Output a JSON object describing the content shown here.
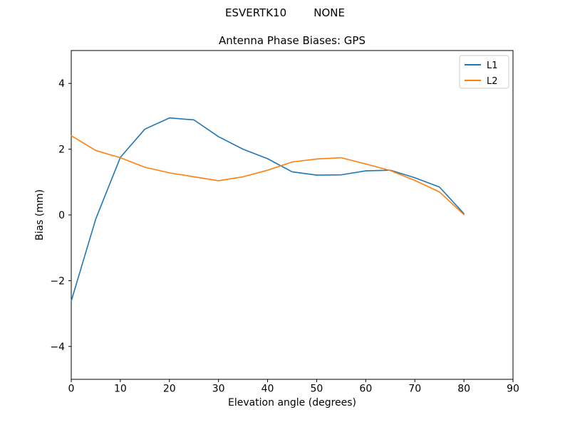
{
  "chart_data": {
    "type": "line",
    "suptitle": "ESVERTK10        NONE",
    "title": "Antenna Phase Biases: GPS",
    "xlabel": "Elevation angle (degrees)",
    "ylabel": "Bias (mm)",
    "xlim": [
      0,
      90
    ],
    "ylim": [
      -5,
      5
    ],
    "xticks": [
      0,
      10,
      20,
      30,
      40,
      50,
      60,
      70,
      80,
      90
    ],
    "yticks": [
      -4,
      -2,
      0,
      2,
      4
    ],
    "grid": false,
    "legend_position": "upper right",
    "legend_entries": [
      "L1",
      "L2"
    ],
    "x": [
      0,
      5,
      10,
      15,
      20,
      25,
      30,
      35,
      40,
      45,
      50,
      55,
      60,
      65,
      70,
      75,
      80
    ],
    "series": [
      {
        "name": "L1",
        "color": "#1f77b4",
        "values": [
          -2.62,
          -0.12,
          1.75,
          2.61,
          2.95,
          2.89,
          2.38,
          2.0,
          1.71,
          1.31,
          1.21,
          1.22,
          1.34,
          1.36,
          1.13,
          0.85,
          0.04
        ]
      },
      {
        "name": "L2",
        "color": "#ff7f0e",
        "values": [
          2.41,
          1.96,
          1.74,
          1.45,
          1.28,
          1.16,
          1.04,
          1.16,
          1.36,
          1.61,
          1.7,
          1.74,
          1.55,
          1.35,
          1.05,
          0.7,
          0.01
        ]
      }
    ],
    "colors": {
      "axes": "#000000",
      "background": "#ffffff",
      "legend_border": "#cccccc"
    }
  }
}
